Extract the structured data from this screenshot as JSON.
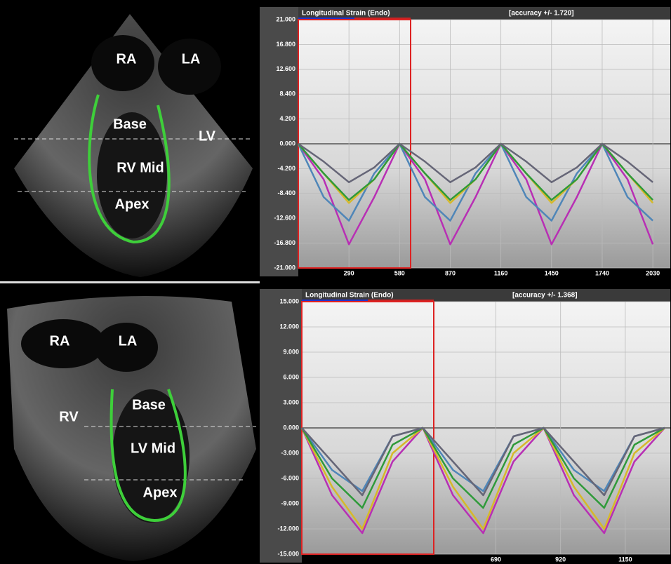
{
  "echo_labels": [
    [
      "RA",
      "LA",
      "Base",
      "LV",
      "RV Mid",
      "Apex"
    ],
    [
      "RA",
      "LA",
      "RV",
      "Base",
      "LV Mid",
      "Apex"
    ]
  ],
  "chart_data": [
    {
      "type": "line",
      "title": "Longitudinal Strain (Endo)",
      "subtitle": "[accuracy +/- 1.720]",
      "x": [
        0,
        145,
        290,
        435,
        580,
        725,
        870,
        1015,
        1160,
        1305,
        1450,
        1595,
        1740,
        1885,
        2030
      ],
      "xlim": [
        0,
        2130
      ],
      "xticks": [
        290,
        580,
        870,
        1160,
        1450,
        1740,
        2030
      ],
      "ylim": [
        -21,
        21
      ],
      "yticks": [
        {
          "value": 21,
          "label": "21.000"
        },
        {
          "value": 16.8,
          "label": "16.800"
        },
        {
          "value": 12.6,
          "label": "12.600"
        },
        {
          "value": 8.4,
          "label": "8.400"
        },
        {
          "value": 4.2,
          "label": "4.200"
        },
        {
          "value": 0,
          "label": "0.000"
        },
        {
          "value": -4.2,
          "label": "-4.200"
        },
        {
          "value": -8.4,
          "label": "-8.400"
        },
        {
          "value": -12.6,
          "label": "-12.600"
        },
        {
          "value": -16.8,
          "label": "-16.800"
        },
        {
          "value": -21,
          "label": "-21.000"
        }
      ],
      "grid": true,
      "series": [
        {
          "color": "#b82fb4",
          "values": [
            0,
            -6,
            -17,
            -9,
            0,
            -6,
            -17,
            -9,
            0,
            -6,
            -17,
            -9,
            0,
            -6,
            -17
          ]
        },
        {
          "color": "#4f86b8",
          "values": [
            0,
            -9,
            -13,
            -5,
            0,
            -9,
            -13,
            -5,
            0,
            -9,
            -13,
            -5,
            0,
            -9,
            -13
          ]
        },
        {
          "color": "#d6b92a",
          "values": [
            0,
            -5,
            -10,
            -6,
            0,
            -5,
            -10,
            -6,
            0,
            -5,
            -10,
            -6,
            0,
            -5,
            -10
          ]
        },
        {
          "color": "#2f9a3a",
          "values": [
            0,
            -5,
            -9.5,
            -6,
            0,
            -5,
            -9.5,
            -6,
            0,
            -5,
            -9.5,
            -6,
            0,
            -5,
            -9.5
          ]
        },
        {
          "color": "#666677",
          "values": [
            0,
            -3,
            -6.5,
            -4,
            0,
            -3,
            -6.5,
            -4,
            0,
            -3,
            -6.5,
            -4,
            0,
            -3,
            -6.5
          ]
        }
      ]
    },
    {
      "type": "line",
      "title": "Longitudinal Strain (Endo)",
      "subtitle": "[accuracy +/- 1.368]",
      "x": [
        0,
        107.5,
        215,
        322.5,
        430,
        537.5,
        645,
        752.5,
        860,
        967.5,
        1075,
        1182.5,
        1290
      ],
      "xlim": [
        0,
        1310
      ],
      "xticks": [
        690,
        920,
        1150
      ],
      "ylim": [
        -15,
        15
      ],
      "yticks": [
        {
          "value": 15,
          "label": "15.000"
        },
        {
          "value": 12,
          "label": "12.000"
        },
        {
          "value": 9,
          "label": "9.000"
        },
        {
          "value": 6,
          "label": "6.000"
        },
        {
          "value": 3,
          "label": "3.000"
        },
        {
          "value": 0,
          "label": "0.000"
        },
        {
          "value": -3,
          "label": "-3.000"
        },
        {
          "value": -6,
          "label": "-6.000"
        },
        {
          "value": -9,
          "label": "-9.000"
        },
        {
          "value": -12,
          "label": "-12.000"
        },
        {
          "value": -15,
          "label": "-15.000"
        }
      ],
      "grid": true,
      "series": [
        {
          "color": "#b82fb4",
          "values": [
            0,
            -8,
            -12.5,
            -4,
            0,
            -8,
            -12.5,
            -4,
            0,
            -8,
            -12.5,
            -4,
            0
          ]
        },
        {
          "color": "#4f86b8",
          "values": [
            0,
            -5,
            -7.5,
            -1,
            0,
            -5,
            -7.5,
            -1,
            0,
            -5,
            -7.5,
            -1,
            0
          ]
        },
        {
          "color": "#d6b92a",
          "values": [
            0,
            -7,
            -12,
            -3,
            0,
            -7,
            -12,
            -3,
            0,
            -7,
            -12,
            -3,
            0
          ]
        },
        {
          "color": "#2f9a3a",
          "values": [
            0,
            -6,
            -9.5,
            -2,
            0,
            -6,
            -9.5,
            -2,
            0,
            -6,
            -9.5,
            -2,
            0
          ]
        },
        {
          "color": "#666677",
          "values": [
            0,
            -4,
            -8,
            -1,
            0,
            -4,
            -8,
            -1,
            0,
            -4,
            -8,
            -1,
            0
          ]
        }
      ]
    }
  ]
}
